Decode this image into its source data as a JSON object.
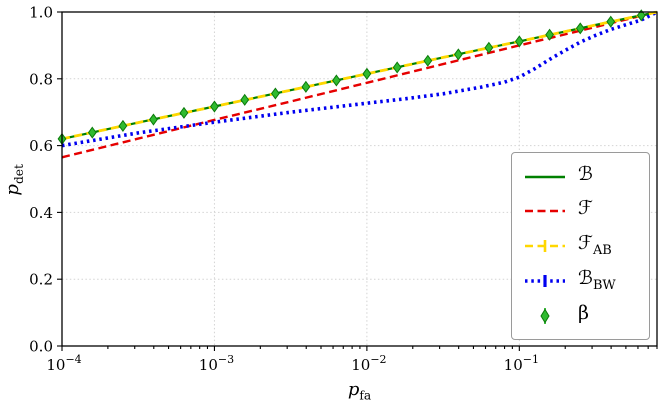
{
  "axes": {
    "xlabel": {
      "main": "p",
      "sub": "fa"
    },
    "ylabel": {
      "main": "p",
      "sub": "det"
    }
  },
  "chart_data": {
    "type": "line",
    "title": "",
    "xlabel": "p_fa",
    "ylabel": "p_det",
    "xscale": "log",
    "xlim": [
      0.0001,
      0.8
    ],
    "ylim": [
      0,
      1
    ],
    "grid": true,
    "legend_position": "lower right",
    "xticks": [
      {
        "value": 0.0001,
        "base": "10",
        "exp": "−4"
      },
      {
        "value": 0.001,
        "base": "10",
        "exp": "−3"
      },
      {
        "value": 0.01,
        "base": "10",
        "exp": "−2"
      },
      {
        "value": 0.1,
        "base": "10",
        "exp": "−1"
      }
    ],
    "yticks": [
      {
        "value": 0,
        "label": "0.0"
      },
      {
        "value": 0.2,
        "label": "0.2"
      },
      {
        "value": 0.4,
        "label": "0.4"
      },
      {
        "value": 0.6,
        "label": "0.6"
      },
      {
        "value": 0.8,
        "label": "0.8"
      },
      {
        "value": 1,
        "label": "1.0"
      }
    ],
    "series": [
      {
        "name": "B",
        "label": "ℬ",
        "color": "#008000",
        "style": "solid",
        "width": 2.2,
        "x": [
          0.0001,
          0.000316,
          0.001,
          0.00316,
          0.01,
          0.0316,
          0.1,
          0.316,
          0.631,
          0.8
        ],
        "y": [
          0.62,
          0.669,
          0.717,
          0.766,
          0.815,
          0.864,
          0.912,
          0.961,
          0.99,
          1.0
        ]
      },
      {
        "name": "F",
        "label": "ℱ",
        "color": "#e60000",
        "style": "dashed",
        "width": 2.4,
        "x": [
          0.0001,
          0.000316,
          0.001,
          0.00316,
          0.01,
          0.0316,
          0.1,
          0.316,
          0.631,
          0.8
        ],
        "y": [
          0.565,
          0.621,
          0.677,
          0.732,
          0.788,
          0.844,
          0.9,
          0.955,
          0.989,
          1.0
        ]
      },
      {
        "name": "F_AB",
        "label": "ℱ_AB",
        "color": "#ffd700",
        "style": "dashed",
        "width": 2.8,
        "x": [
          0.0001,
          0.000316,
          0.001,
          0.00316,
          0.01,
          0.0316,
          0.1,
          0.316,
          0.631,
          0.8
        ],
        "y": [
          0.62,
          0.669,
          0.717,
          0.766,
          0.815,
          0.864,
          0.912,
          0.961,
          0.99,
          1.0
        ]
      },
      {
        "name": "B_BW",
        "label": "ℬ_BW",
        "color": "#0000f0",
        "style": "dotted",
        "width": 3.6,
        "x": [
          0.0001,
          0.000316,
          0.001,
          0.00316,
          0.01,
          0.0178,
          0.0316,
          0.0562,
          0.08,
          0.1,
          0.126,
          0.158,
          0.2,
          0.251,
          0.316,
          0.398,
          0.501,
          0.631,
          0.8
        ],
        "y": [
          0.6,
          0.638,
          0.67,
          0.7,
          0.727,
          0.74,
          0.755,
          0.775,
          0.79,
          0.805,
          0.83,
          0.858,
          0.885,
          0.91,
          0.93,
          0.948,
          0.962,
          0.976,
          1.0
        ]
      },
      {
        "name": "beta",
        "label": "β",
        "color": "#2fba2f",
        "edge": "#0b7a0b",
        "style": "markers",
        "marker": "diamond",
        "yerr": 0.012,
        "x": [
          0.0001,
          0.000158,
          0.000251,
          0.000398,
          0.000631,
          0.001,
          0.00158,
          0.00251,
          0.00398,
          0.00631,
          0.01,
          0.0158,
          0.0251,
          0.0398,
          0.0631,
          0.1,
          0.158,
          0.251,
          0.398,
          0.631
        ],
        "y": [
          0.62,
          0.639,
          0.659,
          0.678,
          0.698,
          0.717,
          0.737,
          0.756,
          0.776,
          0.795,
          0.815,
          0.834,
          0.854,
          0.873,
          0.893,
          0.912,
          0.932,
          0.951,
          0.971,
          0.99
        ]
      }
    ]
  },
  "legend": {
    "items": [
      {
        "label": "ℬ",
        "sub": ""
      },
      {
        "label": "ℱ",
        "sub": ""
      },
      {
        "label": "ℱ",
        "sub": "AB"
      },
      {
        "label": "ℬ",
        "sub": "BW"
      },
      {
        "label": "β",
        "sub": ""
      }
    ]
  }
}
